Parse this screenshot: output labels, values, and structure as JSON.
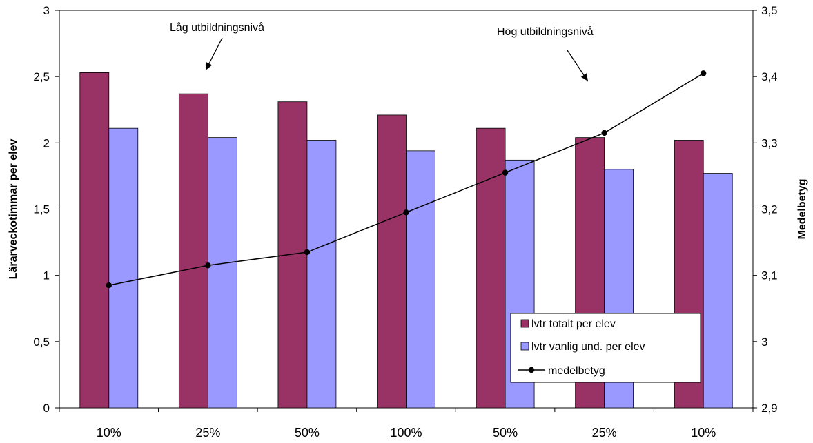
{
  "chart_data": {
    "type": "bar",
    "categories": [
      "10%",
      "25%",
      "50%",
      "100%",
      "50%",
      "25%",
      "10%"
    ],
    "series": [
      {
        "name": "lvtr totalt per elev",
        "type": "bar",
        "axis": "left",
        "color": "#993366",
        "values": [
          2.53,
          2.37,
          2.31,
          2.21,
          2.11,
          2.04,
          2.02
        ]
      },
      {
        "name": "lvtr vanlig und. per elev",
        "type": "bar",
        "axis": "left",
        "color": "#9999FF",
        "values": [
          2.11,
          2.04,
          2.02,
          1.94,
          1.87,
          1.8,
          1.77
        ]
      },
      {
        "name": "medelbetyg",
        "type": "line",
        "axis": "right",
        "color": "#000000",
        "marker": "circle",
        "values": [
          3.085,
          3.115,
          3.135,
          3.195,
          3.255,
          3.315,
          3.405
        ]
      }
    ],
    "ylabel": "Lärarveckotimmar per elev",
    "y2label": "Medelbetyg",
    "ylim": [
      0,
      3
    ],
    "y2lim": [
      2.9,
      3.5
    ],
    "yticks": [
      "0",
      "0,5",
      "1",
      "1,5",
      "2",
      "2,5",
      "3"
    ],
    "y2ticks": [
      "2,9",
      "3",
      "3,1",
      "3,2",
      "3,3",
      "3,4",
      "3,5"
    ],
    "annotations": [
      "Låg utbildningsnivå",
      "Hög utbildningsnivå"
    ],
    "legend_position": "bottom-right",
    "grid": false
  }
}
